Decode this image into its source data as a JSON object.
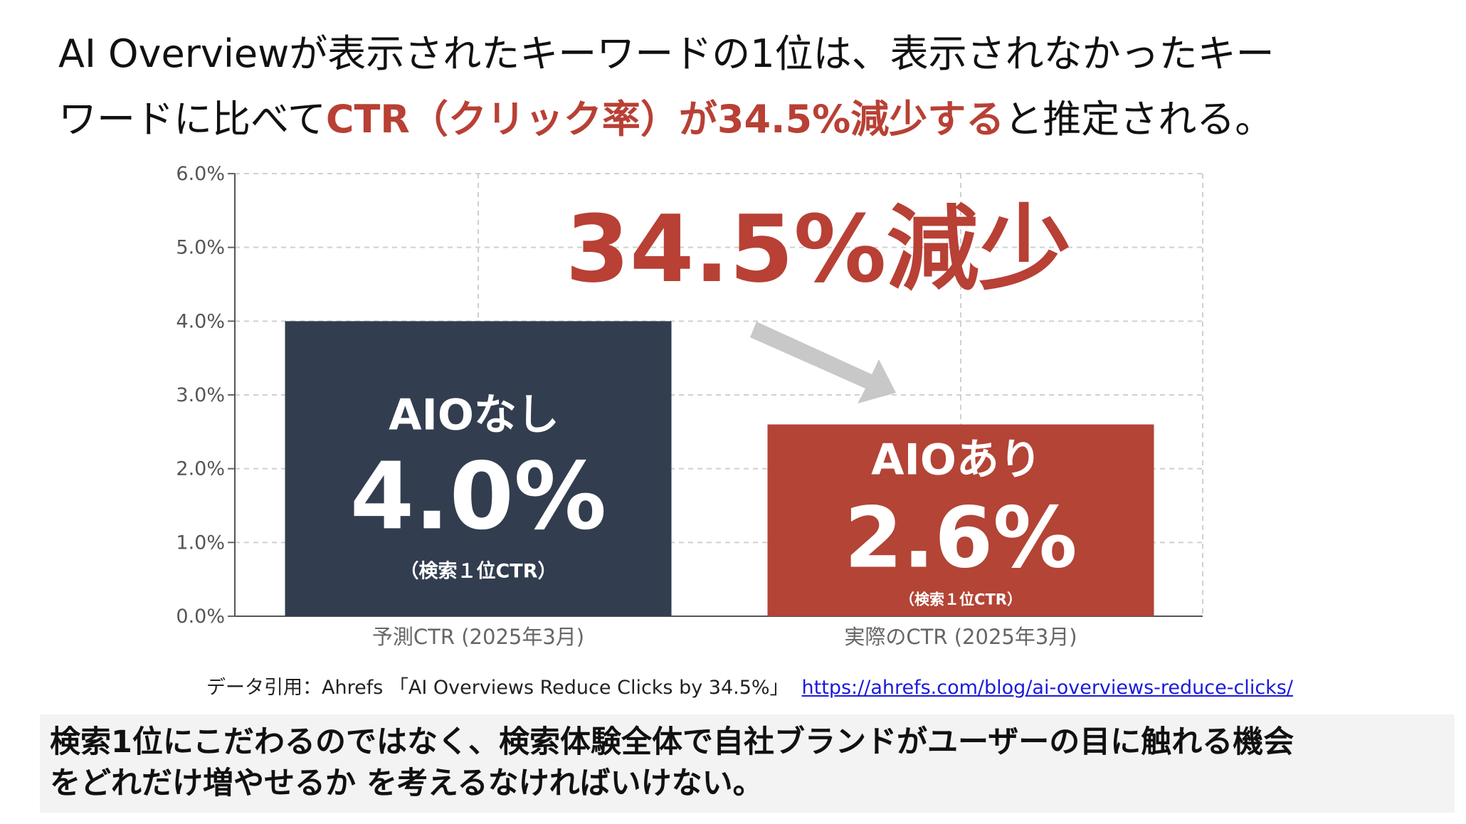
{
  "headline": {
    "line1": "AI Overviewが表示されたキーワードの1位は、表示されなかったキー",
    "line2_pre": "ワードに比べて",
    "line2_highlight": "CTR（クリック率）が34.5%減少する",
    "line2_post": "と推定される。"
  },
  "colors": {
    "bar_without": "#323d4f",
    "bar_with": "#b34436",
    "accent": "#b84035",
    "arrow": "#c8c8c8",
    "grid": "#d0d0d0"
  },
  "chart_data": {
    "type": "bar",
    "categories": [
      "予測CTR (2025年3月)",
      "実際のCTR (2025年3月)"
    ],
    "values": [
      4.0,
      2.6
    ],
    "y_ticks": [
      "0.0%",
      "1.0%",
      "2.0%",
      "3.0%",
      "4.0%",
      "5.0%",
      "6.0%"
    ],
    "ylim": [
      0,
      6
    ],
    "grid": true,
    "bar_labels": [
      {
        "title": "AIOなし",
        "value": "4.0%",
        "note": "（検索１位CTR）"
      },
      {
        "title": "AIOあり",
        "value": "2.6%",
        "note": "（検索１位CTR）"
      }
    ],
    "annotation": "34.5%減少"
  },
  "source": {
    "text": "データ引用：Ahrefs 「AI Overviews Reduce Clicks by 34.5%」",
    "link": "https://ahrefs.com/blog/ai-overviews-reduce-clicks/"
  },
  "note": {
    "line1": "検索1位にこだわるのではなく、検索体験全体で自社ブランドがユーザーの目に触れる機会",
    "line2": "をどれだけ増やせるか を考えるなければいけない。"
  }
}
